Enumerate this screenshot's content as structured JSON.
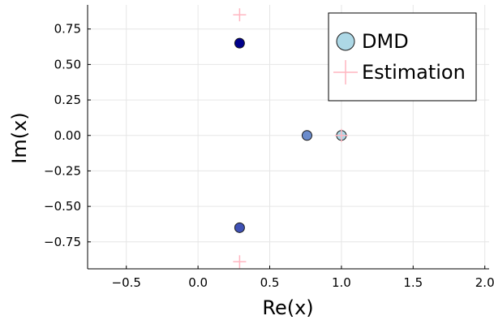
{
  "chart_data": {
    "type": "scatter",
    "xlabel": "Re(x)",
    "ylabel": "Im(x)",
    "xlim": [
      -0.77,
      2.03
    ],
    "ylim": [
      -0.94,
      0.92
    ],
    "grid": true,
    "legend_position": "top-right",
    "x_ticks": [
      -0.5,
      0.0,
      0.5,
      1.0,
      1.5,
      2.0
    ],
    "x_tick_labels": [
      "−0.5",
      "0.0",
      "0.5",
      "1.0",
      "1.5",
      "2.0"
    ],
    "y_ticks": [
      0.75,
      0.5,
      0.25,
      0.0,
      -0.25,
      -0.5,
      -0.75
    ],
    "y_tick_labels": [
      "0.75",
      "0.50",
      "0.25",
      "0.00",
      "−0.25",
      "−0.50",
      "−0.75"
    ],
    "series": [
      {
        "name": "DMD",
        "marker": "circle",
        "legend_color": "#add8e6",
        "points": [
          {
            "x": 0.29,
            "y": 0.65,
            "color": "#00008b"
          },
          {
            "x": 0.29,
            "y": -0.65,
            "color": "#3f51b5"
          },
          {
            "x": 0.76,
            "y": 0.0,
            "color": "#6b8ccc"
          },
          {
            "x": 1.0,
            "y": 0.0,
            "color": "#add8e6"
          }
        ]
      },
      {
        "name": "Estimation",
        "marker": "cross",
        "legend_color": "#ffb6c1",
        "points": [
          {
            "x": 0.29,
            "y": 0.85,
            "color": "#ffb6c1"
          },
          {
            "x": 0.29,
            "y": -0.89,
            "color": "#ffb6c1"
          },
          {
            "x": 1.0,
            "y": 0.0,
            "color": "#ffb6c1"
          }
        ]
      }
    ]
  }
}
